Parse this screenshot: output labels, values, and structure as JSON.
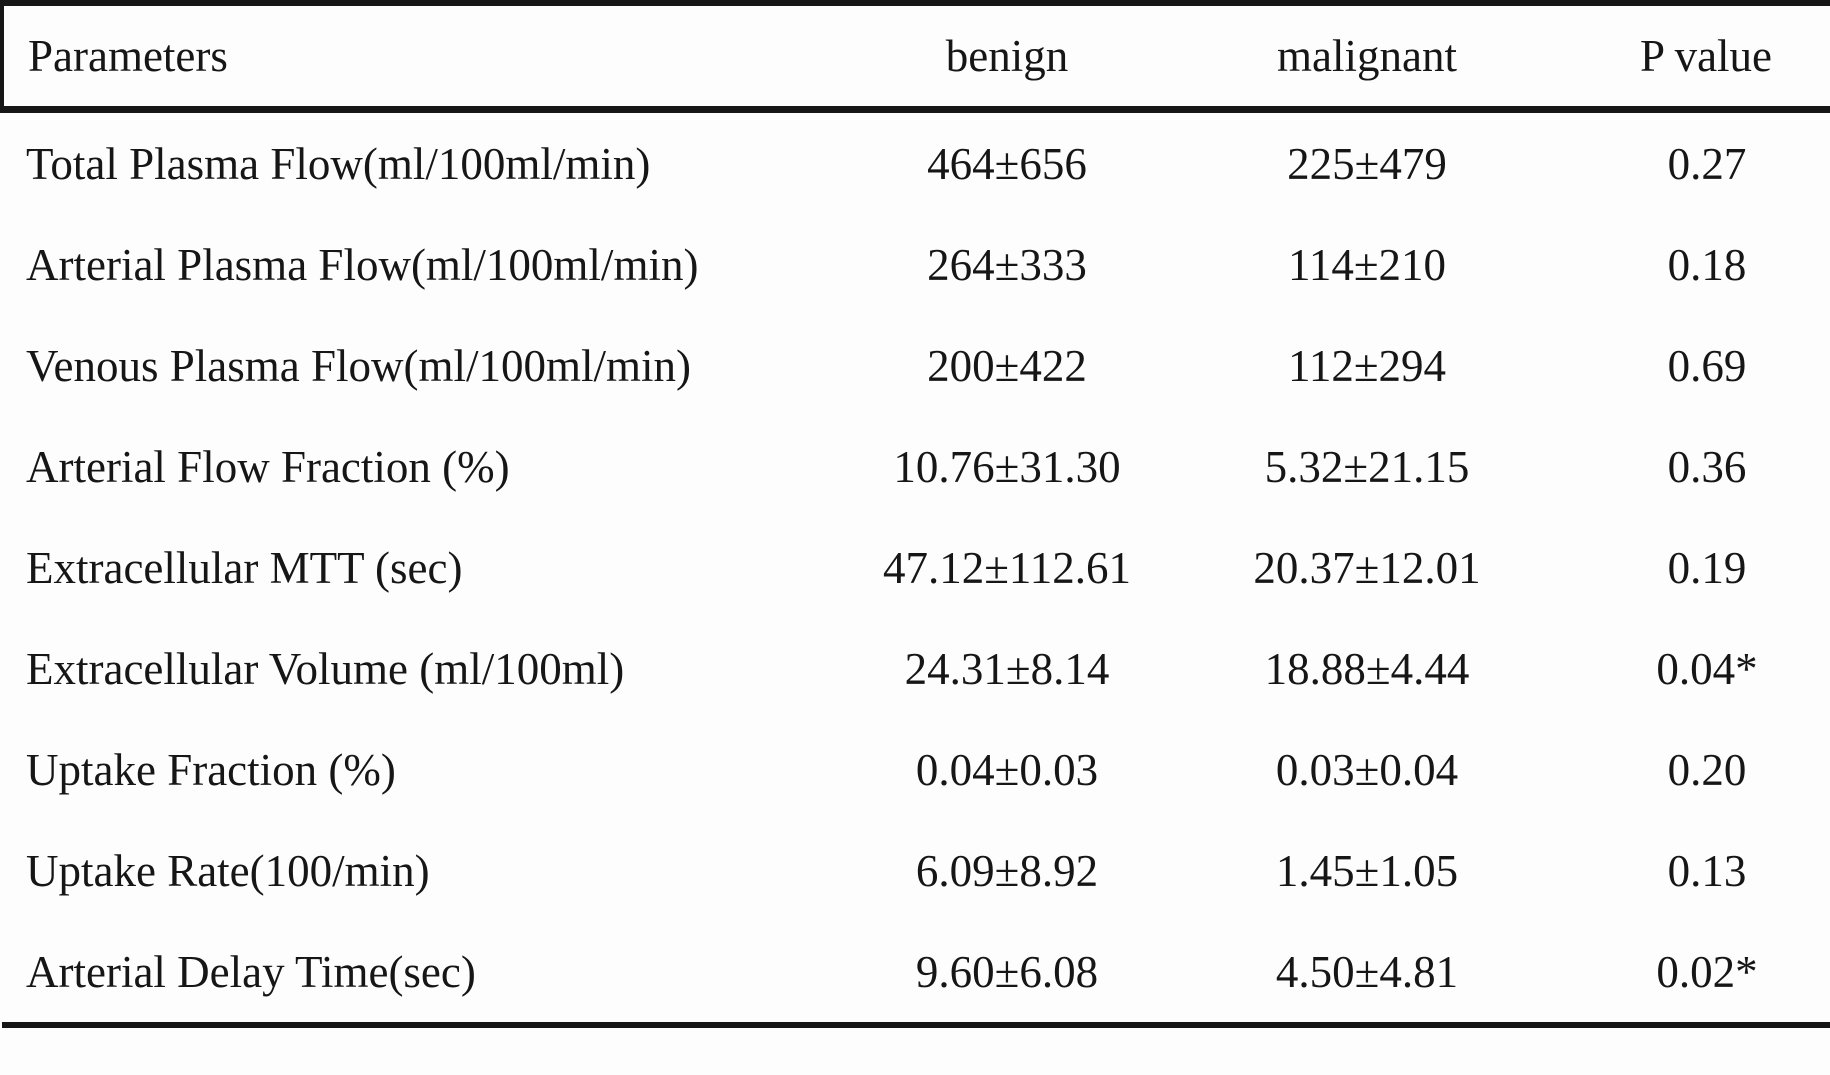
{
  "figure": {
    "kind": "statistics-table",
    "colors": {
      "border": "#161616",
      "text": "#161616",
      "background": "#fdfdfd"
    },
    "columns": [
      "Parameters",
      "benign",
      "malignant",
      "P value"
    ],
    "rows": [
      {
        "parameter": "Total Plasma Flow(ml/100ml/min)",
        "benign": "464±656",
        "malignant": "225±479",
        "p_value": "0.27"
      },
      {
        "parameter": "Arterial Plasma Flow(ml/100ml/min)",
        "benign": "264±333",
        "malignant": "114±210",
        "p_value": "0.18"
      },
      {
        "parameter": "Venous Plasma Flow(ml/100ml/min)",
        "benign": "200±422",
        "malignant": "112±294",
        "p_value": "0.69"
      },
      {
        "parameter": "Arterial Flow Fraction (%)",
        "benign": "10.76±31.30",
        "malignant": "5.32±21.15",
        "p_value": "0.36"
      },
      {
        "parameter": "Extracellular MTT (sec)",
        "benign": "47.12±112.61",
        "malignant": "20.37±12.01",
        "p_value": "0.19"
      },
      {
        "parameter": "Extracellular Volume (ml/100ml)",
        "benign": "24.31±8.14",
        "malignant": "18.88±4.44",
        "p_value": "0.04*"
      },
      {
        "parameter": "Uptake Fraction (%)",
        "benign": "0.04±0.03",
        "malignant": "0.03±0.04",
        "p_value": "0.20"
      },
      {
        "parameter": "Uptake Rate(100/min)",
        "benign": "6.09±8.92",
        "malignant": "1.45±1.05",
        "p_value": "0.13"
      },
      {
        "parameter": "Arterial Delay Time(sec)",
        "benign": "9.60±6.08",
        "malignant": "4.50±4.81",
        "p_value": "0.02*"
      }
    ]
  }
}
